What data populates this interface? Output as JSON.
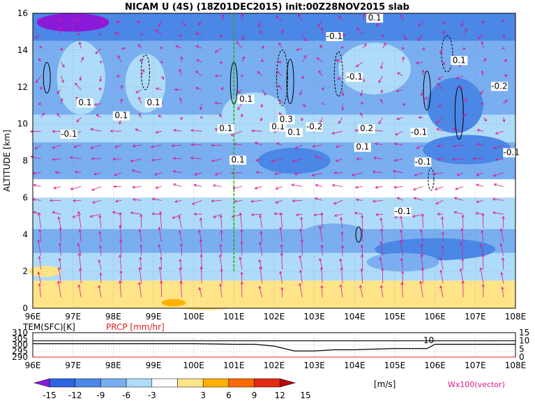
{
  "title": "NICAM U (4S) (18Z01DEC2015) init:00Z28NOV2015 slab",
  "chart_data": [
    {
      "type": "heatmap",
      "ylabel": "ALTITUDE [km]",
      "xticks": [
        "96E",
        "97E",
        "98E",
        "99E",
        "100E",
        "101E",
        "102E",
        "103E",
        "104E",
        "105E",
        "106E",
        "107E",
        "108E"
      ],
      "yticks": [
        "0",
        "2",
        "4",
        "6",
        "8",
        "10",
        "12",
        "14",
        "16"
      ],
      "xlim": [
        96,
        108
      ],
      "ylim": [
        0,
        16
      ],
      "marker_line_lon": 101,
      "contour_labels": [
        "0.1",
        "0.1",
        "0.1",
        "-0.1",
        "0.1",
        "-0.1",
        "-0.1",
        "0.1",
        "-0.2",
        "0.1",
        "0.3",
        "-0.1",
        "-0.2",
        "0.2",
        "0.1",
        "0.1",
        "-0.1",
        "-0.1",
        "0.1",
        "-0.1",
        "0.1",
        "0.1"
      ],
      "shading_bands": [
        {
          "from": 0,
          "to": 1.5,
          "value": 3
        },
        {
          "from": 1.5,
          "to": 3.0,
          "value": -3
        },
        {
          "from": 3.0,
          "to": 4.3,
          "value": -6
        },
        {
          "from": 4.3,
          "to": 6.0,
          "value": -3
        },
        {
          "from": 6.0,
          "to": 7.0,
          "value": 0
        },
        {
          "from": 7.0,
          "to": 9.0,
          "value": -6
        },
        {
          "from": 9.0,
          "to": 10.5,
          "value": -3
        },
        {
          "from": 10.5,
          "to": 14.5,
          "value": -6
        },
        {
          "from": 14.5,
          "to": 16.0,
          "value": -9
        }
      ],
      "grid": true
    },
    {
      "type": "line",
      "series": [
        {
          "name": "TEM(SFC)[K]",
          "values": [
            301,
            301,
            301,
            301,
            301,
            300.5,
            300.5,
            299,
            295,
            295,
            296,
            296,
            297,
            297,
            300.5,
            300.5
          ]
        },
        {
          "name": "PRCP [mm/hr]",
          "values": [
            0,
            0,
            0,
            0,
            0,
            0,
            0,
            0,
            0,
            0,
            0,
            0,
            0,
            0,
            0,
            0
          ]
        }
      ],
      "x": [
        96,
        97,
        98,
        99,
        100,
        101,
        101.5,
        102,
        102.5,
        103,
        103.5,
        104,
        105,
        105.8,
        106,
        108
      ],
      "left_ticks": [
        "310",
        "305",
        "300",
        "295",
        "290"
      ],
      "right_ticks": [
        "15",
        "10",
        "5",
        "0"
      ],
      "annotation": "10"
    }
  ],
  "colorbar": {
    "ticks": [
      "-15",
      "-12",
      "-9",
      "-6",
      "-3",
      "3",
      "6",
      "9",
      "12",
      "15"
    ],
    "colors": [
      "#8a1ad8",
      "#2b64e0",
      "#4a87e6",
      "#79aef0",
      "#aedbf7",
      "#ffffff",
      "#ffe488",
      "#ffb000",
      "#ff6a00",
      "#e02a14",
      "#b80a0a"
    ],
    "unit": "[m/s]",
    "vector_label": "Wx100(vector)"
  },
  "colors": {
    "vector": "#e0148c",
    "marker_line": "#1db51d",
    "prcp": "#e02020"
  }
}
